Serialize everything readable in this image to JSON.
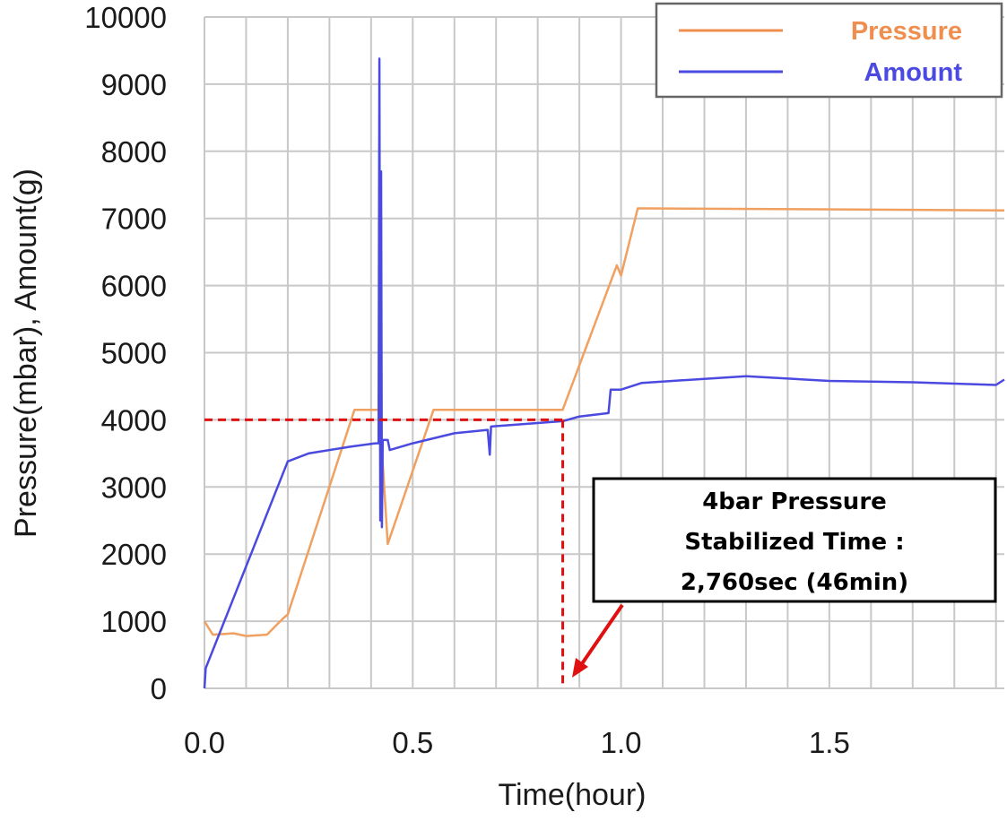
{
  "chart_data": {
    "type": "line",
    "title": "",
    "xlabel": "Time(hour)",
    "ylabel": "Pressure(mbar), Amount(g)",
    "xlim": [
      0,
      1.92
    ],
    "ylim": [
      0,
      10000
    ],
    "x_ticks": [
      0.0,
      0.5,
      1.0,
      1.5
    ],
    "x_tick_labels": [
      "0.0",
      "0.5",
      "1.0",
      "1.5"
    ],
    "y_ticks": [
      0,
      1000,
      2000,
      3000,
      4000,
      5000,
      6000,
      7000,
      8000,
      9000,
      10000
    ],
    "y_tick_labels": [
      "0",
      "1000",
      "2000",
      "3000",
      "4000",
      "5000",
      "6000",
      "7000",
      "8000",
      "9000",
      "10000"
    ],
    "grid": true,
    "legend_position": "top-right",
    "series": [
      {
        "name": "Pressure",
        "color": "#f0a060",
        "points": [
          [
            0.0,
            1000
          ],
          [
            0.02,
            800
          ],
          [
            0.07,
            820
          ],
          [
            0.1,
            780
          ],
          [
            0.15,
            800
          ],
          [
            0.19,
            1050
          ],
          [
            0.2,
            1100
          ],
          [
            0.36,
            4150
          ],
          [
            0.42,
            4150
          ],
          [
            0.44,
            2150
          ],
          [
            0.55,
            4150
          ],
          [
            0.86,
            4150
          ],
          [
            0.99,
            6300
          ],
          [
            1.0,
            6150
          ],
          [
            1.04,
            7150
          ],
          [
            1.06,
            7150
          ],
          [
            1.92,
            7120
          ]
        ]
      },
      {
        "name": "Amount",
        "color": "#4a4ae0",
        "points": [
          [
            0.0,
            0
          ],
          [
            0.003,
            300
          ],
          [
            0.2,
            3380
          ],
          [
            0.25,
            3500
          ],
          [
            0.35,
            3600
          ],
          [
            0.41,
            3650
          ],
          [
            0.418,
            3650
          ],
          [
            0.42,
            9380
          ],
          [
            0.422,
            2500
          ],
          [
            0.424,
            7700
          ],
          [
            0.426,
            2400
          ],
          [
            0.428,
            3700
          ],
          [
            0.44,
            3700
          ],
          [
            0.445,
            3550
          ],
          [
            0.5,
            3650
          ],
          [
            0.6,
            3800
          ],
          [
            0.68,
            3850
          ],
          [
            0.685,
            3480
          ],
          [
            0.688,
            3900
          ],
          [
            0.86,
            3980
          ],
          [
            0.9,
            4050
          ],
          [
            0.97,
            4100
          ],
          [
            0.975,
            4450
          ],
          [
            1.0,
            4450
          ],
          [
            1.05,
            4550
          ],
          [
            1.3,
            4650
          ],
          [
            1.5,
            4580
          ],
          [
            1.7,
            4560
          ],
          [
            1.9,
            4520
          ],
          [
            1.92,
            4600
          ]
        ]
      }
    ],
    "annotations": {
      "reference_value": 4000,
      "reference_time": 0.86,
      "callout_lines": [
        "4bar Pressure",
        "Stabilized Time :",
        "2,760sec (46min)"
      ],
      "reference_color": "#e01010",
      "arrow_color": "#e01010"
    }
  }
}
